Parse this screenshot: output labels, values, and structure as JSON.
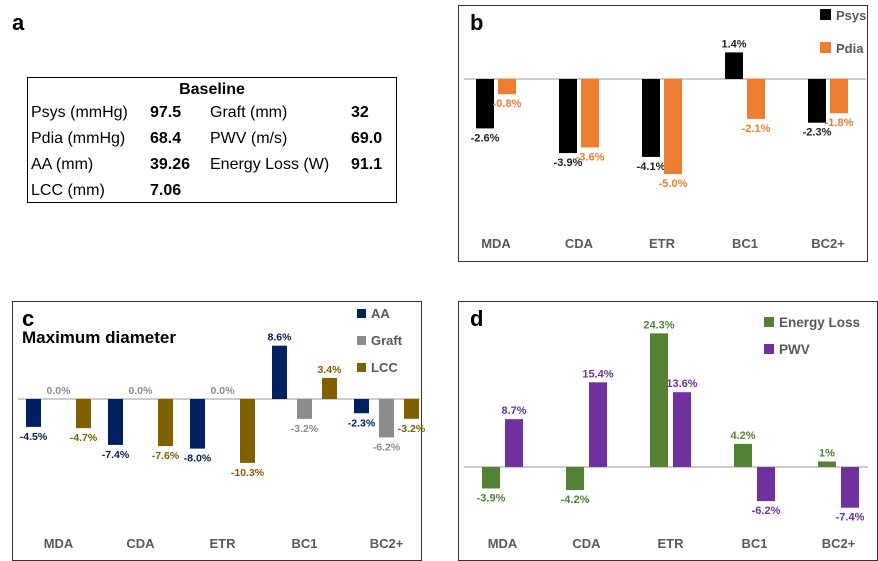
{
  "panels": {
    "a": {
      "letter": "a",
      "table": {
        "title": "Baseline",
        "rows": [
          {
            "l1": "Psys (mmHg)",
            "v1": "97.5",
            "l2": "Graft (mm)",
            "v2": "32"
          },
          {
            "l1": "Pdia (mmHg)",
            "v1": "68.4",
            "l2": "PWV (m/s)",
            "v2": "69.0"
          },
          {
            "l1": "AA (mm)",
            "v1": "39.26",
            "l2": "Energy Loss (W)",
            "v2": "91.1"
          },
          {
            "l1": "LCC (mm)",
            "v1": "7.06",
            "l2": "",
            "v2": ""
          }
        ]
      }
    },
    "b": {
      "letter": "b"
    },
    "c": {
      "letter": "c"
    },
    "d": {
      "letter": "d"
    }
  },
  "chart_data": [
    {
      "panel": "b",
      "type": "bar",
      "title": "",
      "categories": [
        "MDA",
        "CDA",
        "ETR",
        "BC1",
        "BC2+"
      ],
      "series": [
        {
          "name": "Psys",
          "color": "#000000",
          "label_color": "#222222",
          "values": [
            -2.6,
            -3.9,
            -4.1,
            1.4,
            -2.3
          ],
          "labels": [
            "-2.6%",
            "-3.9%",
            "-4.1%",
            "1.4%",
            "-2.3%"
          ]
        },
        {
          "name": "Pdia",
          "color": "#ED7D31",
          "label_color": "#ED7D31",
          "values": [
            -0.8,
            -3.6,
            -5.0,
            -2.1,
            -1.8
          ],
          "labels": [
            "-0.8%",
            "-3.6%",
            "-5.0%",
            "-2.1%",
            "-1.8%"
          ]
        }
      ],
      "legend": "top-right"
    },
    {
      "panel": "c",
      "type": "bar",
      "title": "Maximum diameter",
      "categories": [
        "MDA",
        "CDA",
        "ETR",
        "BC1",
        "BC2+"
      ],
      "series": [
        {
          "name": "AA",
          "color": "#002060",
          "label_color": "#002060",
          "values": [
            -4.5,
            -7.4,
            -8.0,
            8.6,
            -2.3
          ],
          "labels": [
            "-4.5%",
            "-7.4%",
            "-8.0%",
            "8.6%",
            "-2.3%"
          ]
        },
        {
          "name": "Graft",
          "color": "#8C8C8C",
          "label_color": "#8C8C8C",
          "values": [
            0.0,
            0.0,
            0.0,
            -3.2,
            -6.2
          ],
          "labels": [
            "0.0%",
            "0.0%",
            "0.0%",
            "-3.2%",
            "-6.2%"
          ]
        },
        {
          "name": "LCC",
          "color": "#806000",
          "label_color": "#806000",
          "values": [
            -4.7,
            -7.6,
            -10.3,
            3.4,
            -3.2
          ],
          "labels": [
            "-4.7%",
            "-7.6%",
            "-10.3%",
            "3.4%",
            "-3.2%"
          ]
        }
      ],
      "legend": "top-right"
    },
    {
      "panel": "d",
      "type": "bar",
      "title": "",
      "categories": [
        "MDA",
        "CDA",
        "ETR",
        "BC1",
        "BC2+"
      ],
      "series": [
        {
          "name": "Energy Loss",
          "color": "#548235",
          "label_color": "#548235",
          "values": [
            -3.9,
            -4.2,
            24.3,
            4.2,
            1.0
          ],
          "labels": [
            "-3.9%",
            "-4.2%",
            "24.3%",
            "4.2%",
            "1%"
          ]
        },
        {
          "name": "PWV",
          "color": "#7030A0",
          "label_color": "#7030A0",
          "values": [
            8.7,
            15.4,
            13.6,
            -6.2,
            -7.4
          ],
          "labels": [
            "8.7%",
            "15.4%",
            "13.6%",
            "-6.2%",
            "-7.4%"
          ]
        }
      ],
      "legend": "top-right"
    }
  ]
}
